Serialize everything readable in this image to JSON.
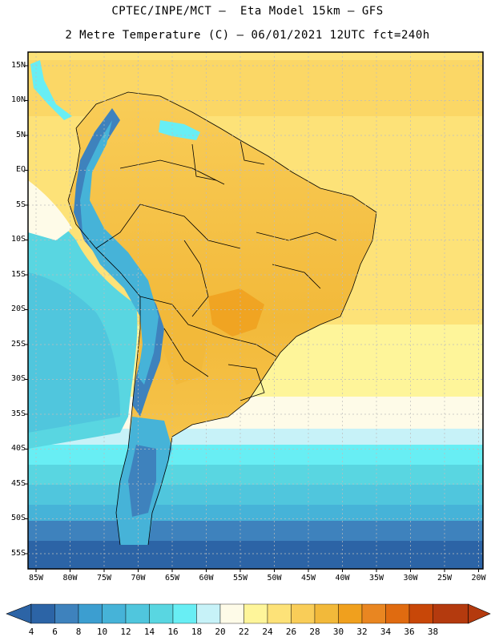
{
  "header": {
    "line1": "CPTEC/INPE/MCT –  Eta Model 15km – GFS",
    "line2": "2 Metre Temperature (C) – 06/01/2021 12UTC fct=240h"
  },
  "map": {
    "lat_labels": [
      "15N",
      "10N",
      "5N",
      "EQ",
      "5S",
      "10S",
      "15S",
      "20S",
      "25S",
      "30S",
      "35S",
      "40S",
      "45S",
      "50S",
      "55S"
    ],
    "lon_labels": [
      "85W",
      "80W",
      "75W",
      "70W",
      "65W",
      "60W",
      "55W",
      "50W",
      "45W",
      "40W",
      "35W",
      "30W",
      "25W",
      "20W"
    ]
  },
  "colorbar": {
    "labels": [
      "4",
      "6",
      "8",
      "10",
      "12",
      "14",
      "16",
      "18",
      "20",
      "22",
      "24",
      "26",
      "28",
      "30",
      "32",
      "34",
      "36",
      "38"
    ],
    "colors": [
      "#2c64a6",
      "#3e82bd",
      "#3c9ed0",
      "#46b3d8",
      "#50c6dd",
      "#59d6e1",
      "#68eef4",
      "#c7f2f8",
      "#fefbe8",
      "#fef59a",
      "#fde278",
      "#f9cd58",
      "#f2b93a",
      "#f0a01e",
      "#e98621",
      "#e06b10",
      "#c84708",
      "#b43a0e"
    ]
  }
}
